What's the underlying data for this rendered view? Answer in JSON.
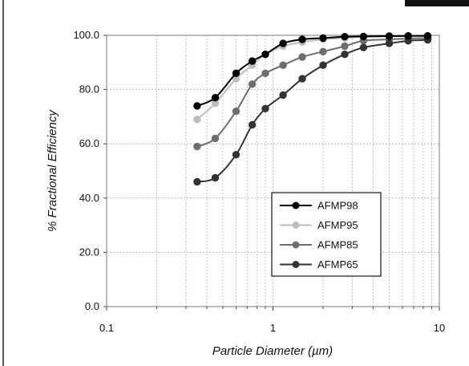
{
  "chart_data": {
    "type": "line",
    "title": "",
    "xlabel": "Particle Diameter (µm)",
    "ylabel": "% Fractional Efficiency",
    "x_scale": "log",
    "xlim": [
      0.1,
      10
    ],
    "ylim": [
      0,
      100
    ],
    "x_ticks": [
      "0.1",
      "1",
      "10"
    ],
    "y_ticks": [
      "0.0",
      "20.0",
      "40.0",
      "60.0",
      "80.0",
      "100.0"
    ],
    "grid": true,
    "legend_position": "lower-right",
    "x": [
      0.35,
      0.45,
      0.6,
      0.75,
      0.9,
      1.15,
      1.5,
      2.0,
      2.7,
      3.5,
      5.0,
      6.5,
      8.5
    ],
    "series": [
      {
        "name": "AFMP98",
        "color": "#000000",
        "values": [
          74.0,
          77.0,
          86.0,
          90.5,
          93.0,
          97.0,
          98.5,
          99.0,
          99.5,
          99.6,
          99.7,
          99.8,
          99.8
        ]
      },
      {
        "name": "AFMP95",
        "color": "#bdbdbd",
        "values": [
          69.0,
          75.0,
          84.0,
          89.0,
          93.0,
          96.0,
          97.5,
          98.5,
          99.0,
          99.5,
          99.6,
          99.7,
          99.7
        ]
      },
      {
        "name": "AFMP85",
        "color": "#6e6e6e",
        "values": [
          59.0,
          62.0,
          72.0,
          82.0,
          86.0,
          89.0,
          92.0,
          94.0,
          96.0,
          98.0,
          98.5,
          98.8,
          99.0
        ]
      },
      {
        "name": "AFMP65",
        "color": "#333333",
        "values": [
          46.0,
          47.5,
          56.0,
          67.0,
          73.0,
          78.0,
          84.0,
          89.0,
          93.0,
          95.5,
          97.0,
          98.0,
          98.3
        ]
      }
    ]
  }
}
